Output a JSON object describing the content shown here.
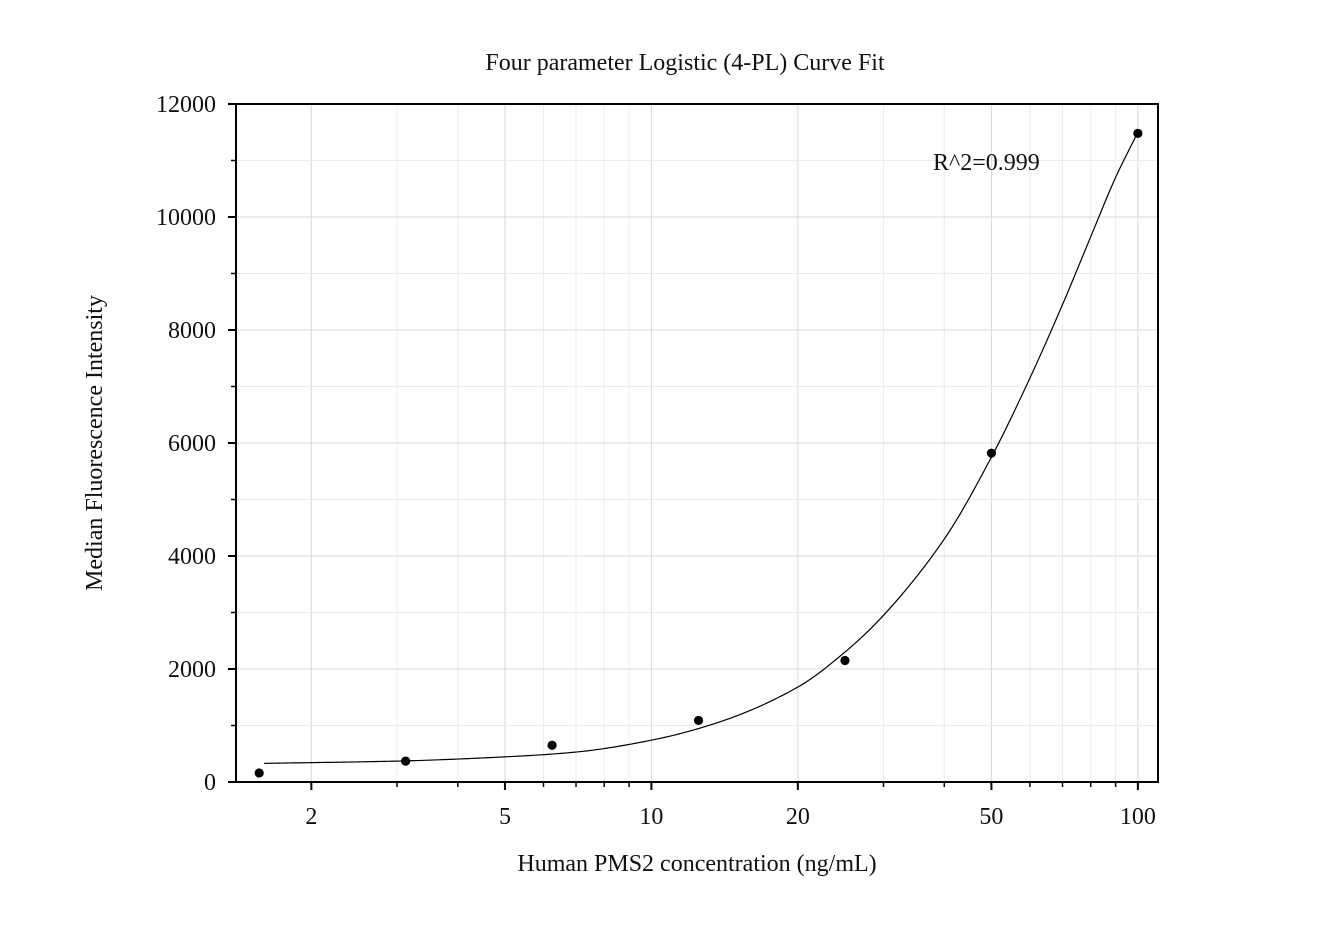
{
  "chart_data": {
    "type": "scatter",
    "title": "Four parameter Logistic (4-PL) Curve Fit",
    "xlabel": "Human PMS2 concentration (ng/mL)",
    "ylabel": "Median Fluorescence Intensity",
    "x_scale": "log",
    "xlim": [
      1.4,
      110
    ],
    "ylim": [
      0,
      12000
    ],
    "x_ticks": [
      2,
      5,
      10,
      20,
      50,
      100
    ],
    "x_tick_labels": [
      "2",
      "5",
      "10",
      "20",
      "50",
      "100"
    ],
    "y_ticks": [
      0,
      2000,
      4000,
      6000,
      8000,
      10000,
      12000
    ],
    "y_tick_labels": [
      "0",
      "2000",
      "4000",
      "6000",
      "8000",
      "10000",
      "12000"
    ],
    "grid": true,
    "annotation": "R^2=0.999",
    "series": [
      {
        "points": [
          {
            "x": 1.5625,
            "y": 160
          },
          {
            "x": 3.125,
            "y": 370
          },
          {
            "x": 6.25,
            "y": 650
          },
          {
            "x": 12.5,
            "y": 1090
          },
          {
            "x": 25,
            "y": 2150
          },
          {
            "x": 50,
            "y": 5820
          },
          {
            "x": 100,
            "y": 11480
          }
        ],
        "color": "#000000"
      }
    ],
    "fit_curve": {
      "type": "4PL",
      "x_range": [
        1.6,
        100
      ],
      "points": [
        {
          "x": 1.6,
          "y": 330
        },
        {
          "x": 3.0,
          "y": 370
        },
        {
          "x": 5.0,
          "y": 445
        },
        {
          "x": 7.0,
          "y": 530
        },
        {
          "x": 10.0,
          "y": 740
        },
        {
          "x": 14.0,
          "y": 1080
        },
        {
          "x": 20.0,
          "y": 1680
        },
        {
          "x": 25.0,
          "y": 2300
        },
        {
          "x": 30.0,
          "y": 2950
        },
        {
          "x": 40.0,
          "y": 4300
        },
        {
          "x": 50.0,
          "y": 5750
        },
        {
          "x": 60.0,
          "y": 7150
        },
        {
          "x": 70.0,
          "y": 8450
        },
        {
          "x": 80.0,
          "y": 9650
        },
        {
          "x": 90.0,
          "y": 10700
        },
        {
          "x": 100.0,
          "y": 11500
        }
      ],
      "color": "#000000"
    }
  }
}
